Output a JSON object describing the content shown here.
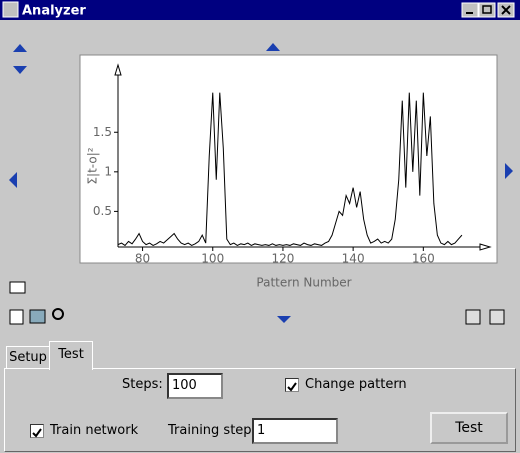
{
  "window": {
    "title": "Analyzer"
  },
  "chart_data": {
    "type": "line",
    "x": [
      73,
      74,
      75,
      76,
      77,
      78,
      79,
      80,
      81,
      82,
      83,
      84,
      85,
      86,
      87,
      88,
      89,
      90,
      91,
      92,
      93,
      94,
      95,
      96,
      97,
      98,
      99,
      100,
      101,
      102,
      103,
      104,
      105,
      106,
      107,
      108,
      109,
      110,
      111,
      112,
      113,
      114,
      115,
      116,
      117,
      118,
      119,
      120,
      121,
      122,
      123,
      124,
      125,
      126,
      127,
      128,
      129,
      130,
      131,
      132,
      133,
      134,
      135,
      136,
      137,
      138,
      139,
      140,
      141,
      142,
      143,
      144,
      145,
      146,
      147,
      148,
      149,
      150,
      151,
      152,
      153,
      154,
      155,
      156,
      157,
      158,
      159,
      160,
      161,
      162,
      163,
      164,
      165,
      166,
      167,
      168,
      169,
      170,
      171
    ],
    "series": [
      {
        "color": "#000000",
        "values": [
          0.08,
          0.1,
          0.07,
          0.12,
          0.09,
          0.15,
          0.22,
          0.12,
          0.08,
          0.1,
          0.07,
          0.09,
          0.12,
          0.1,
          0.14,
          0.18,
          0.22,
          0.15,
          0.1,
          0.08,
          0.1,
          0.07,
          0.09,
          0.12,
          0.2,
          0.1,
          1.2,
          2.0,
          0.9,
          2.0,
          1.3,
          0.15,
          0.08,
          0.1,
          0.07,
          0.09,
          0.08,
          0.1,
          0.07,
          0.09,
          0.08,
          0.07,
          0.08,
          0.07,
          0.09,
          0.07,
          0.08,
          0.07,
          0.08,
          0.07,
          0.09,
          0.08,
          0.07,
          0.1,
          0.08,
          0.07,
          0.09,
          0.08,
          0.07,
          0.1,
          0.12,
          0.2,
          0.35,
          0.5,
          0.45,
          0.7,
          0.6,
          0.8,
          0.55,
          0.75,
          0.4,
          0.2,
          0.1,
          0.12,
          0.15,
          0.1,
          0.12,
          0.1,
          0.15,
          0.4,
          0.9,
          1.9,
          0.8,
          2.0,
          1.0,
          1.9,
          0.7,
          2.0,
          1.2,
          1.7,
          0.6,
          0.2,
          0.1,
          0.08,
          0.12,
          0.08,
          0.1,
          0.15,
          0.2
        ]
      }
    ],
    "xlim": [
      73,
      179
    ],
    "ylim": [
      0.05,
      2.35
    ],
    "xticks": [
      80,
      100,
      120,
      140,
      160
    ],
    "yticks": [
      0.5,
      1,
      1.5
    ],
    "x_label": "Pattern Number",
    "y_label": "Σ|t-o|²"
  },
  "tabs": [
    "Setup",
    "Test"
  ],
  "form": {
    "steps_label": "Steps:",
    "steps_value": "100",
    "change_pattern_label": "Change pattern",
    "change_pattern_checked": true,
    "train_network_label": "Train network",
    "train_network_checked": true,
    "training_steps_label": "Training steps:",
    "training_steps_value": "1",
    "button": "Test"
  }
}
